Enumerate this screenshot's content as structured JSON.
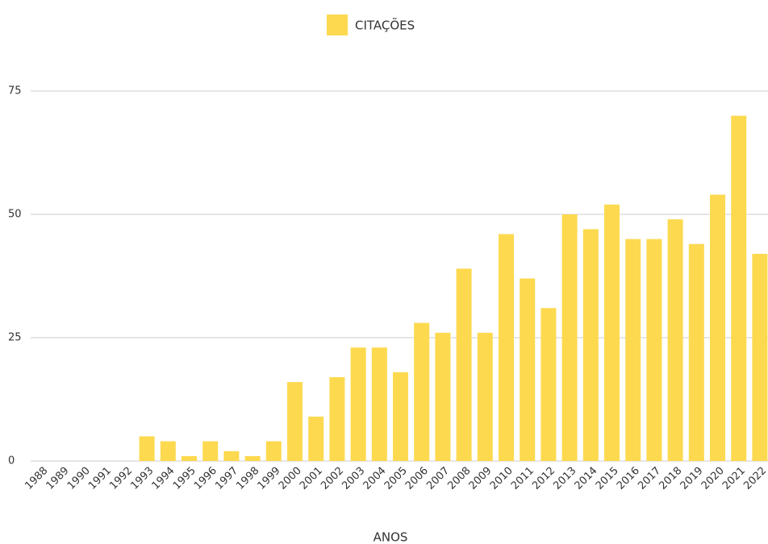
{
  "chart_data": {
    "type": "bar",
    "legend": "CITAÇÕES",
    "xlabel": "ANOS",
    "categories": [
      "1988",
      "1989",
      "1990",
      "1991",
      "1992",
      "1993",
      "1994",
      "1995",
      "1996",
      "1997",
      "1998",
      "1999",
      "2000",
      "2001",
      "2002",
      "2003",
      "2004",
      "2005",
      "2006",
      "2007",
      "2008",
      "2009",
      "2010",
      "2011",
      "2012",
      "2013",
      "2014",
      "2015",
      "2016",
      "2017",
      "2018",
      "2019",
      "2020",
      "2021",
      "2022"
    ],
    "values": [
      0,
      0,
      0,
      0,
      0,
      5,
      4,
      1,
      4,
      2,
      1,
      4,
      16,
      9,
      17,
      23,
      23,
      18,
      28,
      26,
      39,
      26,
      46,
      37,
      31,
      50,
      47,
      52,
      45,
      45,
      49,
      44,
      54,
      70,
      42
    ],
    "color": "#fdd94f",
    "ylim": [
      0,
      75
    ],
    "yticks": [
      0,
      25,
      50,
      75
    ],
    "grid": true
  }
}
